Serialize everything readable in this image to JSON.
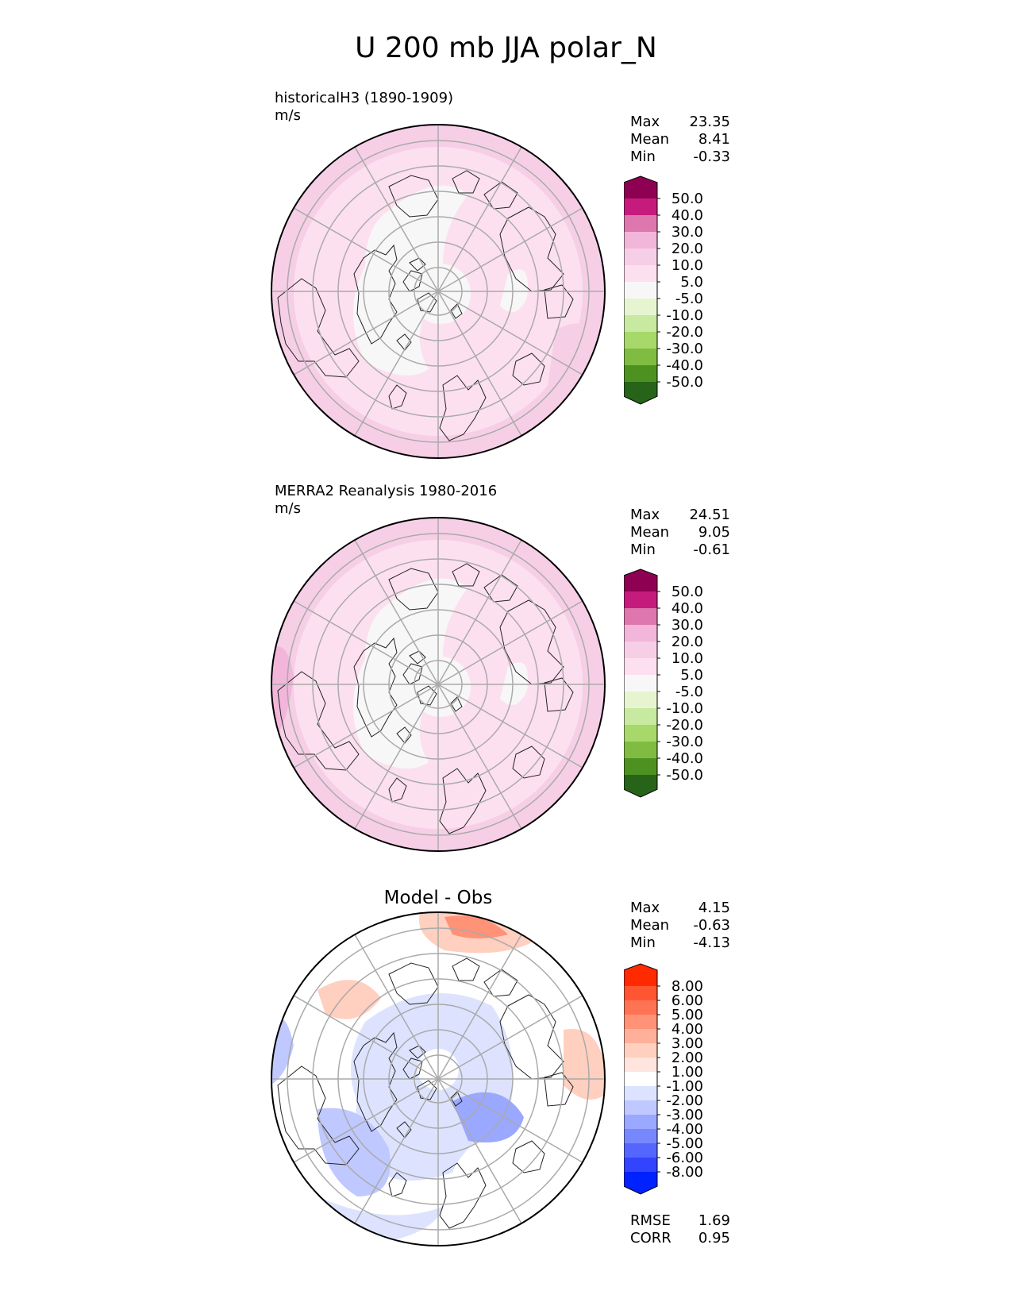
{
  "title": "U 200 mb JJA polar_N",
  "panels": [
    {
      "label_line1": "historicalH3 (1890-1909)",
      "label_line2": "m/s",
      "stats": {
        "max_label": "Max",
        "max": "23.35",
        "mean_label": "Mean",
        "mean": "8.41",
        "min_label": "Min",
        "min": "-0.33"
      }
    },
    {
      "label_line1": "MERRA2 Reanalysis 1980-2016",
      "label_line2": "m/s",
      "stats": {
        "max_label": "Max",
        "max": "24.51",
        "mean_label": "Mean",
        "mean": "9.05",
        "min_label": "Min",
        "min": "-0.61"
      }
    },
    {
      "title": "Model - Obs",
      "stats": {
        "max_label": "Max",
        "max": "4.15",
        "mean_label": "Mean",
        "mean": "-0.63",
        "min_label": "Min",
        "min": "-4.13"
      },
      "rmse_label": "RMSE",
      "rmse": "1.69",
      "corr_label": "CORR",
      "corr": "0.95"
    }
  ],
  "chart_data": [
    {
      "type": "heatmap",
      "projection": "north polar stereographic",
      "units": "m/s",
      "colorbar_ticks": [
        "50.0",
        "40.0",
        "30.0",
        "20.0",
        "10.0",
        "5.0",
        "-5.0",
        "-10.0",
        "-20.0",
        "-30.0",
        "-40.0",
        "-50.0"
      ],
      "colorbar_colors": [
        "#8e0152",
        "#c51b7d",
        "#de77ae",
        "#f1b6da",
        "#f6cfe6",
        "#fde0ef",
        "#f7f7f7",
        "#e6f5d0",
        "#c7e9a0",
        "#a6d96a",
        "#7fbc41",
        "#4d9221",
        "#276419"
      ],
      "max": 23.35,
      "mean": 8.41,
      "min": -0.33
    },
    {
      "type": "heatmap",
      "projection": "north polar stereographic",
      "units": "m/s",
      "colorbar_ticks": [
        "50.0",
        "40.0",
        "30.0",
        "20.0",
        "10.0",
        "5.0",
        "-5.0",
        "-10.0",
        "-20.0",
        "-30.0",
        "-40.0",
        "-50.0"
      ],
      "colorbar_colors": [
        "#8e0152",
        "#c51b7d",
        "#de77ae",
        "#f1b6da",
        "#f6cfe6",
        "#fde0ef",
        "#f7f7f7",
        "#e6f5d0",
        "#c7e9a0",
        "#a6d96a",
        "#7fbc41",
        "#4d9221",
        "#276419"
      ],
      "max": 24.51,
      "mean": 9.05,
      "min": -0.61
    },
    {
      "type": "heatmap",
      "projection": "north polar stereographic",
      "colorbar_ticks": [
        "8.00",
        "6.00",
        "5.00",
        "4.00",
        "3.00",
        "2.00",
        "1.00",
        "-1.00",
        "-2.00",
        "-3.00",
        "-4.00",
        "-5.00",
        "-6.00",
        "-8.00"
      ],
      "colorbar_colors": [
        "#ff2a00",
        "#ff5533",
        "#ff7355",
        "#ff9277",
        "#ffb09a",
        "#ffcfbf",
        "#ffe5dd",
        "#ffffff",
        "#dde3ff",
        "#bfc8ff",
        "#9aa8ff",
        "#7788ff",
        "#5566ff",
        "#3344ff",
        "#0022ff"
      ],
      "max": 4.15,
      "mean": -0.63,
      "min": -4.13,
      "rmse": 1.69,
      "corr": 0.95
    }
  ]
}
